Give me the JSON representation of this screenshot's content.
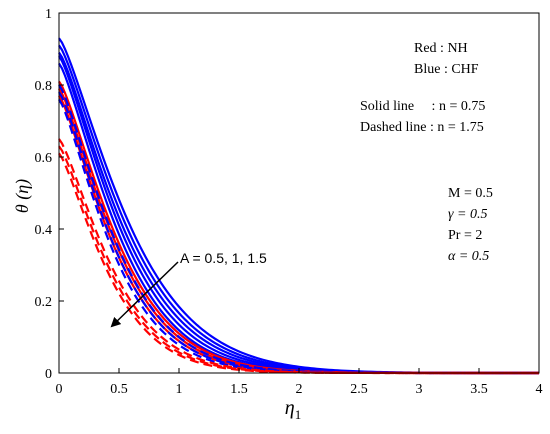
{
  "chart_data": {
    "type": "line",
    "title": "",
    "xlabel": "η",
    "xlabel_sub": "1",
    "ylabel": "θ (η)",
    "xlim": [
      0,
      4
    ],
    "ylim": [
      0,
      1
    ],
    "x_ticks": [
      "0",
      "0.5",
      "1",
      "1.5",
      "2",
      "2.5",
      "3",
      "3.5",
      "4"
    ],
    "y_ticks": [
      "0",
      "0.2",
      "0.4",
      "0.6",
      "0.8",
      "1"
    ],
    "grid": false,
    "legend_notes": {
      "red": "Red  : NH",
      "blue": "Blue : CHF",
      "solid": "Solid line     : n = 0.75",
      "dashed": "Dashed line : n = 1.75"
    },
    "parameters": [
      "M = 0.5",
      "γ = 0.5",
      "Pr = 2",
      "α = 0.5"
    ],
    "arrow_label": "A = 0.5, 1, 1.5",
    "colors": {
      "red": "#ff0000",
      "blue": "#0000ff"
    },
    "series": [
      {
        "color": "#0000ff",
        "style": "solid",
        "theta0": 0.93,
        "rate": 1.62
      },
      {
        "color": "#0000ff",
        "style": "solid",
        "theta0": 0.91,
        "rate": 1.7
      },
      {
        "color": "#0000ff",
        "style": "solid",
        "theta0": 0.89,
        "rate": 1.78
      },
      {
        "color": "#0000ff",
        "style": "solid",
        "theta0": 0.88,
        "rate": 1.88
      },
      {
        "color": "#0000ff",
        "style": "solid",
        "theta0": 0.86,
        "rate": 1.98
      },
      {
        "color": "#ff0000",
        "style": "solid",
        "theta0": 0.81,
        "rate": 2.0
      },
      {
        "color": "#ff0000",
        "style": "solid",
        "theta0": 0.79,
        "rate": 2.08
      },
      {
        "color": "#ff0000",
        "style": "solid",
        "theta0": 0.77,
        "rate": 2.16
      },
      {
        "color": "#0000ff",
        "style": "dashed",
        "theta0": 0.8,
        "rate": 2.08
      },
      {
        "color": "#0000ff",
        "style": "dashed",
        "theta0": 0.78,
        "rate": 2.18
      },
      {
        "color": "#0000ff",
        "style": "dashed",
        "theta0": 0.76,
        "rate": 2.28
      },
      {
        "color": "#ff0000",
        "style": "dashed",
        "theta0": 0.65,
        "rate": 2.3
      },
      {
        "color": "#ff0000",
        "style": "dashed",
        "theta0": 0.63,
        "rate": 2.4
      },
      {
        "color": "#ff0000",
        "style": "dashed",
        "theta0": 0.61,
        "rate": 2.5
      }
    ]
  }
}
